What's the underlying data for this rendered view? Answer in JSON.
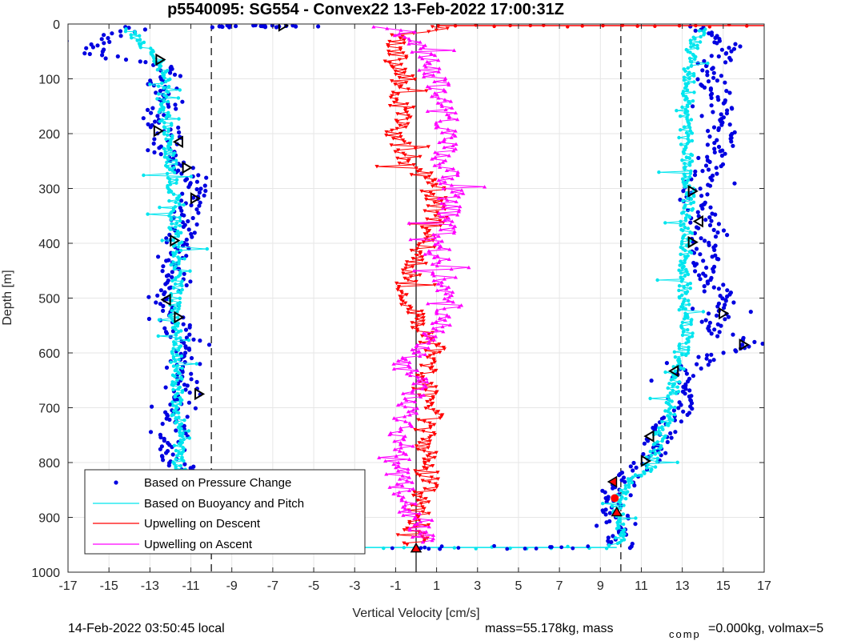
{
  "chart_data": {
    "type": "scatter",
    "title": "p5540095: SG554 - Convex22 13-Feb-2022 17:00:31Z",
    "xlabel": "Vertical Velocity [cm/s]",
    "ylabel": "Depth [m]",
    "xlim": [
      -17,
      17
    ],
    "ylim": [
      0,
      1000
    ],
    "y_reversed": true,
    "xticks": [
      -17,
      -15,
      -13,
      -11,
      -9,
      -7,
      -5,
      -3,
      -1,
      1,
      3,
      5,
      7,
      9,
      11,
      13,
      15,
      17
    ],
    "yticks": [
      0,
      100,
      200,
      300,
      400,
      500,
      600,
      700,
      800,
      900,
      1000
    ],
    "grid": true,
    "legend_position": "bottom-left",
    "vertical_lines": [
      {
        "x": -10,
        "style": "dashed"
      },
      {
        "x": 10,
        "style": "dashed"
      },
      {
        "x": 0,
        "style": "solid"
      }
    ],
    "series": [
      {
        "name": "Based on Pressure Change",
        "color": "#0000e0",
        "marker": "dot",
        "down": [
          [
            -13.5,
            5
          ],
          [
            -15.5,
            30
          ],
          [
            -16,
            50
          ],
          [
            -15,
            60
          ],
          [
            -13,
            70
          ],
          [
            -12,
            90
          ],
          [
            -12.5,
            110
          ],
          [
            -12,
            140
          ],
          [
            -12.8,
            170
          ],
          [
            -12,
            200
          ],
          [
            -12.5,
            230
          ],
          [
            -11.2,
            260
          ],
          [
            -10.8,
            290
          ],
          [
            -11,
            320
          ],
          [
            -11.2,
            350
          ],
          [
            -11.5,
            380
          ],
          [
            -11.8,
            410
          ],
          [
            -12,
            440
          ],
          [
            -11.5,
            470
          ],
          [
            -12.5,
            500
          ],
          [
            -12,
            530
          ],
          [
            -11.6,
            560
          ],
          [
            -11,
            590
          ],
          [
            -11.5,
            620
          ],
          [
            -11.4,
            650
          ],
          [
            -11.2,
            680
          ],
          [
            -11.6,
            710
          ],
          [
            -11.8,
            740
          ],
          [
            -12,
            770
          ],
          [
            -11.6,
            800
          ],
          [
            -11.5,
            830
          ],
          [
            -11.7,
            860
          ],
          [
            -11.6,
            890
          ],
          [
            -11.5,
            920
          ],
          [
            -11.5,
            950
          ]
        ],
        "up": [
          [
            13.5,
            5
          ],
          [
            14.8,
            30
          ],
          [
            15.5,
            50
          ],
          [
            14,
            80
          ],
          [
            14.5,
            110
          ],
          [
            15,
            140
          ],
          [
            14.6,
            170
          ],
          [
            14.9,
            200
          ],
          [
            14.8,
            230
          ],
          [
            14.5,
            260
          ],
          [
            13.8,
            290
          ],
          [
            13.5,
            320
          ],
          [
            14,
            350
          ],
          [
            14.2,
            380
          ],
          [
            14,
            410
          ],
          [
            14.2,
            440
          ],
          [
            14.5,
            470
          ],
          [
            14.8,
            500
          ],
          [
            15,
            530
          ],
          [
            14.5,
            560
          ],
          [
            16.5,
            585
          ],
          [
            14,
            610
          ],
          [
            13,
            640
          ],
          [
            12.8,
            670
          ],
          [
            13,
            700
          ],
          [
            12.2,
            730
          ],
          [
            11.8,
            760
          ],
          [
            11.4,
            790
          ],
          [
            10.5,
            820
          ],
          [
            9.8,
            850
          ],
          [
            9.6,
            880
          ],
          [
            9.7,
            910
          ],
          [
            10,
            940
          ],
          [
            9.8,
            955
          ]
        ]
      },
      {
        "name": "Based on Buoyancy and Pitch",
        "color": "#00e5ee",
        "marker": "dot-line",
        "down": [
          [
            -14,
            10
          ],
          [
            -13.5,
            30
          ],
          [
            -13,
            50
          ],
          [
            -12.5,
            70
          ],
          [
            -12.3,
            100
          ],
          [
            -12.4,
            130
          ],
          [
            -12.3,
            160
          ],
          [
            -12.2,
            190
          ],
          [
            -12.2,
            220
          ],
          [
            -12,
            250
          ],
          [
            -11.9,
            280
          ],
          [
            -11.8,
            310
          ],
          [
            -11.8,
            340
          ],
          [
            -11.8,
            370
          ],
          [
            -11.7,
            400
          ],
          [
            -11.7,
            430
          ],
          [
            -11.7,
            460
          ],
          [
            -11.7,
            490
          ],
          [
            -11.8,
            520
          ],
          [
            -11.7,
            550
          ],
          [
            -11.7,
            580
          ],
          [
            -11.7,
            610
          ],
          [
            -11.6,
            640
          ],
          [
            -11.7,
            670
          ],
          [
            -11.6,
            700
          ],
          [
            -11.6,
            730
          ],
          [
            -11.6,
            760
          ],
          [
            -11.6,
            790
          ],
          [
            -11.5,
            820
          ],
          [
            -11.5,
            850
          ],
          [
            -11.5,
            880
          ],
          [
            -11.5,
            910
          ],
          [
            -11.4,
            940
          ],
          [
            -11.4,
            955
          ]
        ],
        "up": [
          [
            14,
            10
          ],
          [
            13.6,
            30
          ],
          [
            13.4,
            60
          ],
          [
            13.3,
            90
          ],
          [
            13.3,
            120
          ],
          [
            13.2,
            150
          ],
          [
            13.2,
            180
          ],
          [
            13.2,
            210
          ],
          [
            13.2,
            240
          ],
          [
            13.3,
            270
          ],
          [
            13.3,
            300
          ],
          [
            13.3,
            330
          ],
          [
            13.2,
            360
          ],
          [
            13.2,
            390
          ],
          [
            13.2,
            420
          ],
          [
            13.1,
            450
          ],
          [
            13.1,
            480
          ],
          [
            13.1,
            510
          ],
          [
            13.2,
            540
          ],
          [
            13.3,
            570
          ],
          [
            13,
            600
          ],
          [
            12.8,
            630
          ],
          [
            12.6,
            660
          ],
          [
            12.5,
            690
          ],
          [
            12.3,
            720
          ],
          [
            11.9,
            750
          ],
          [
            11.6,
            780
          ],
          [
            11.4,
            810
          ],
          [
            10.5,
            830
          ],
          [
            10,
            860
          ],
          [
            9.8,
            890
          ],
          [
            9.9,
            920
          ],
          [
            10,
            950
          ]
        ]
      },
      {
        "name": "Upwelling on Descent",
        "color": "#ff0000",
        "marker": "triangle-down",
        "values": [
          [
            2,
            5
          ],
          [
            -0.8,
            20
          ],
          [
            -0.9,
            50
          ],
          [
            -1,
            80
          ],
          [
            -0.5,
            110
          ],
          [
            -0.8,
            140
          ],
          [
            -0.6,
            170
          ],
          [
            -0.9,
            200
          ],
          [
            -0.5,
            230
          ],
          [
            -0.2,
            260
          ],
          [
            0.8,
            290
          ],
          [
            0.9,
            320
          ],
          [
            1,
            350
          ],
          [
            0.6,
            380
          ],
          [
            0.3,
            410
          ],
          [
            0,
            440
          ],
          [
            -0.3,
            470
          ],
          [
            -0.4,
            500
          ],
          [
            -0.2,
            530
          ],
          [
            0.3,
            560
          ],
          [
            0.9,
            590
          ],
          [
            0.6,
            620
          ],
          [
            0.5,
            650
          ],
          [
            0.4,
            680
          ],
          [
            0.9,
            710
          ],
          [
            0.4,
            740
          ],
          [
            0.5,
            770
          ],
          [
            0.4,
            800
          ],
          [
            0.6,
            830
          ],
          [
            0.3,
            860
          ],
          [
            0.1,
            890
          ],
          [
            0,
            920
          ],
          [
            0,
            950
          ]
        ]
      },
      {
        "name": "Upwelling on Ascent",
        "color": "#ff00ff",
        "marker": "triangle-up",
        "values": [
          [
            -1.5,
            5
          ],
          [
            0,
            30
          ],
          [
            0.5,
            60
          ],
          [
            0.8,
            90
          ],
          [
            1.2,
            120
          ],
          [
            1.5,
            150
          ],
          [
            1.5,
            180
          ],
          [
            1.4,
            210
          ],
          [
            1.3,
            240
          ],
          [
            1.5,
            270
          ],
          [
            1.8,
            300
          ],
          [
            1.6,
            330
          ],
          [
            1.4,
            360
          ],
          [
            1.2,
            390
          ],
          [
            1,
            420
          ],
          [
            1.3,
            450
          ],
          [
            1.5,
            480
          ],
          [
            1.6,
            510
          ],
          [
            1.3,
            540
          ],
          [
            0.8,
            570
          ],
          [
            0.2,
            600
          ],
          [
            -0.8,
            620
          ],
          [
            0,
            650
          ],
          [
            -0.2,
            680
          ],
          [
            -0.4,
            710
          ],
          [
            -0.8,
            740
          ],
          [
            -0.6,
            770
          ],
          [
            -1,
            800
          ],
          [
            -0.8,
            830
          ],
          [
            -0.6,
            860
          ],
          [
            -0.3,
            890
          ],
          [
            0.1,
            920
          ],
          [
            0.5,
            945
          ]
        ]
      }
    ],
    "horizontal_traces": [
      {
        "color": "#ff0000",
        "y": 3,
        "x_range": [
          1,
          17
        ]
      },
      {
        "color": "#00e5ee",
        "y": 955,
        "x_range": [
          -11.5,
          9.8
        ]
      }
    ],
    "annotation_markers": [
      {
        "shape": "triangle-right",
        "x": -6.5,
        "y": 3
      },
      {
        "shape": "triangle-right",
        "x": -12.5,
        "y": 65
      },
      {
        "shape": "triangle-right",
        "x": -12.6,
        "y": 195
      },
      {
        "shape": "triangle-left",
        "x": -11.6,
        "y": 215
      },
      {
        "shape": "triangle-right",
        "x": -11.2,
        "y": 262
      },
      {
        "shape": "triangle-right",
        "x": -10.8,
        "y": 318
      },
      {
        "shape": "triangle-right",
        "x": -11.8,
        "y": 395
      },
      {
        "shape": "triangle-left",
        "x": -12.2,
        "y": 503
      },
      {
        "shape": "triangle-right",
        "x": -11.6,
        "y": 535
      },
      {
        "shape": "triangle-right",
        "x": -10.6,
        "y": 675
      },
      {
        "shape": "triangle-right",
        "x": -11.4,
        "y": 950
      },
      {
        "shape": "triangle-right",
        "x": 13.5,
        "y": 305
      },
      {
        "shape": "triangle-left",
        "x": 13.8,
        "y": 360
      },
      {
        "shape": "triangle-right",
        "x": 13.5,
        "y": 398
      },
      {
        "shape": "triangle-right",
        "x": 15,
        "y": 528
      },
      {
        "shape": "triangle-right",
        "x": 16,
        "y": 585
      },
      {
        "shape": "triangle-left",
        "x": 12.6,
        "y": 633
      },
      {
        "shape": "triangle-left",
        "x": 11.4,
        "y": 752
      },
      {
        "shape": "triangle-right",
        "x": 11.2,
        "y": 797
      }
    ],
    "apogee_markers": [
      {
        "shape": "triangle-up",
        "color": "#ff0000",
        "x": 0,
        "y": 956
      },
      {
        "shape": "triangle-up",
        "color": "#ff0000",
        "x": -11.5,
        "y": 950
      },
      {
        "shape": "triangle-up",
        "color": "#ff0000",
        "x": 9.8,
        "y": 890
      },
      {
        "shape": "circle",
        "color": "#ff0000",
        "x": 9.7,
        "y": 865
      },
      {
        "shape": "triangle-left",
        "color": "#ff0000",
        "x": 9.6,
        "y": 835
      }
    ]
  },
  "footer": {
    "local_time": "14-Feb-2022 03:50:45 local",
    "mass_text": "mass=55.178kg, mass",
    "comp_sub": "comp",
    "comp_text": "=0.000kg, volmax=5"
  }
}
